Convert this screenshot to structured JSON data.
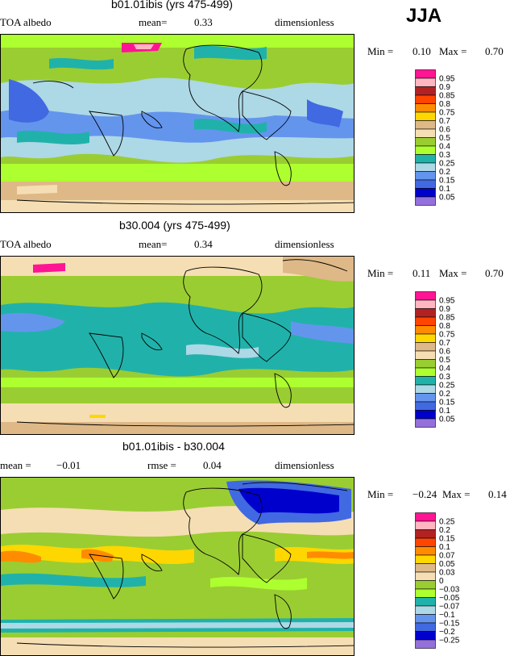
{
  "season": "JJA",
  "panels": [
    {
      "title": "b01.01ibis (yrs 475-499)",
      "left_label": "TOA albedo",
      "mean_label": "mean=",
      "mean_value": "0.33",
      "units": "dimensionless",
      "min_label": "Min =",
      "min_value": "0.10",
      "max_label": "Max =",
      "max_value": "0.70"
    },
    {
      "title": "b30.004 (yrs 475-499)",
      "left_label": "TOA albedo",
      "mean_label": "mean=",
      "mean_value": "0.34",
      "units": "dimensionless",
      "min_label": "Min =",
      "min_value": "0.11",
      "max_label": "Max =",
      "max_value": "0.70"
    },
    {
      "title": "b01.01ibis - b30.004",
      "left_label": "mean =",
      "left_value": "−0.01",
      "mean_label": "rmse =",
      "mean_value": "0.04",
      "units": "dimensionless",
      "min_label": "Min =",
      "min_value": "−0.24",
      "max_label": "Max =",
      "max_value": "0.14"
    }
  ],
  "chart_data": [
    {
      "type": "heatmap",
      "title": "b01.01ibis (yrs 475-499)",
      "variable": "TOA albedo",
      "units": "dimensionless",
      "mean": 0.33,
      "min": 0.1,
      "max": 0.7,
      "levels": [
        "0.95",
        "0.9",
        "0.85",
        "0.8",
        "0.75",
        "0.7",
        "0.6",
        "0.5",
        "0.4",
        "0.3",
        "0.25",
        "0.2",
        "0.15",
        "0.1",
        "0.05"
      ],
      "colors": [
        "#ff1493",
        "#ffb6c1",
        "#b22222",
        "#ff4500",
        "#ff8c00",
        "#ffd700",
        "#deb887",
        "#f5deb3",
        "#9acd32",
        "#adff2f",
        "#20b2aa",
        "#add8e6",
        "#6495ed",
        "#4169e1",
        "#0000cd",
        "#9370db"
      ]
    },
    {
      "type": "heatmap",
      "title": "b30.004 (yrs 475-499)",
      "variable": "TOA albedo",
      "units": "dimensionless",
      "mean": 0.34,
      "min": 0.11,
      "max": 0.7,
      "levels": [
        "0.95",
        "0.9",
        "0.85",
        "0.8",
        "0.75",
        "0.7",
        "0.6",
        "0.5",
        "0.4",
        "0.3",
        "0.25",
        "0.2",
        "0.15",
        "0.1",
        "0.05"
      ],
      "colors": [
        "#ff1493",
        "#ffb6c1",
        "#b22222",
        "#ff4500",
        "#ff8c00",
        "#ffd700",
        "#deb887",
        "#f5deb3",
        "#9acd32",
        "#adff2f",
        "#20b2aa",
        "#add8e6",
        "#6495ed",
        "#4169e1",
        "#0000cd",
        "#9370db"
      ]
    },
    {
      "type": "heatmap",
      "title": "b01.01ibis - b30.004",
      "units": "dimensionless",
      "mean": -0.01,
      "rmse": 0.04,
      "min": -0.24,
      "max": 0.14,
      "levels": [
        "0.25",
        "0.2",
        "0.15",
        "0.1",
        "0.07",
        "0.05",
        "0.03",
        "0",
        "−0.03",
        "−0.05",
        "−0.07",
        "−0.1",
        "−0.15",
        "−0.2",
        "−0.25"
      ],
      "colors": [
        "#ff1493",
        "#ffb6c1",
        "#b22222",
        "#ff4500",
        "#ff8c00",
        "#ffd700",
        "#deb887",
        "#f5deb3",
        "#9acd32",
        "#adff2f",
        "#20b2aa",
        "#add8e6",
        "#6495ed",
        "#4169e1",
        "#0000cd",
        "#9370db"
      ]
    }
  ]
}
